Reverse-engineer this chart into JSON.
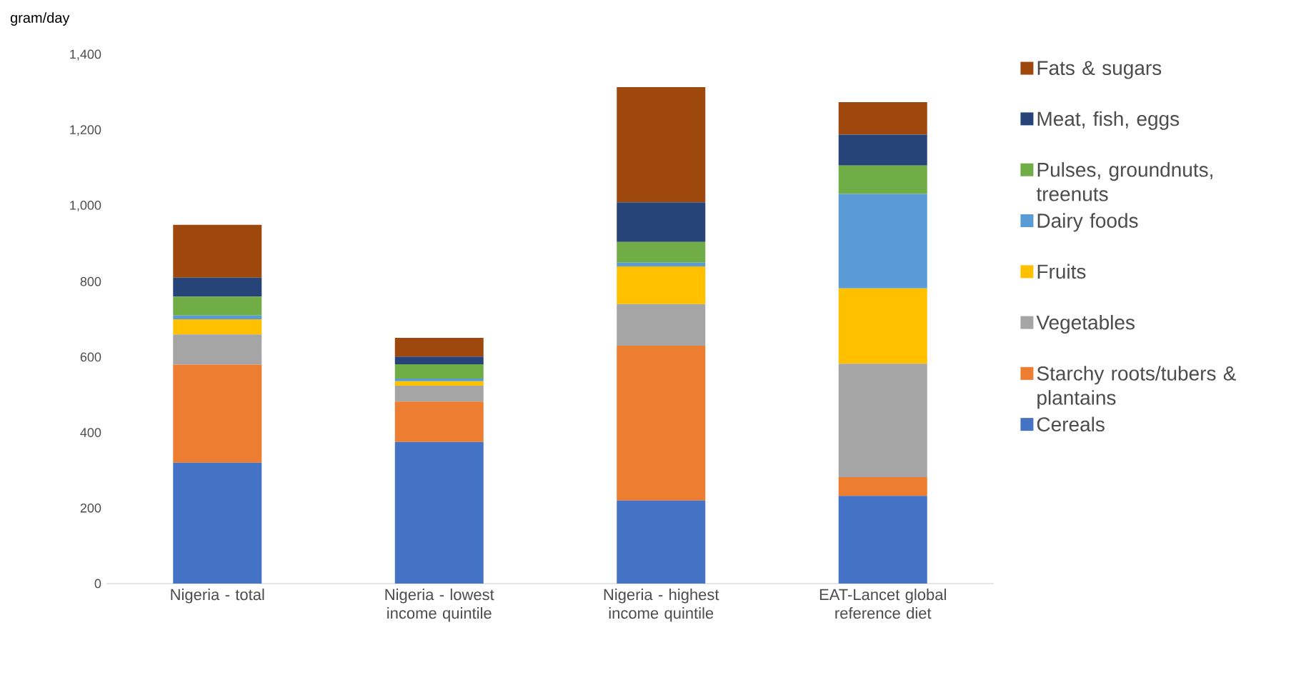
{
  "chart_data": {
    "type": "bar",
    "stacked": true,
    "ylabel": "gram/day",
    "categories": [
      "Nigeria - total",
      "Nigeria - lowest income quintile",
      "Nigeria - highest income quintile",
      "EAT-Lancet global reference diet"
    ],
    "series": [
      {
        "name": "Cereals",
        "color": "#4472c4",
        "values": [
          320,
          375,
          220,
          232
        ]
      },
      {
        "name": "Starchy roots/tubers & plantains",
        "color": "#ed7d31",
        "values": [
          260,
          107,
          410,
          50
        ]
      },
      {
        "name": "Vegetables",
        "color": "#a5a5a5",
        "values": [
          80,
          42,
          110,
          300
        ]
      },
      {
        "name": "Fruits",
        "color": "#ffc000",
        "values": [
          40,
          12,
          100,
          200
        ]
      },
      {
        "name": "Dairy foods",
        "color": "#5b9bd5",
        "values": [
          10,
          7,
          10,
          250
        ]
      },
      {
        "name": "Pulses, groundnuts, treenuts",
        "color": "#70ad47",
        "values": [
          50,
          38,
          55,
          75
        ]
      },
      {
        "name": "Meat, fish, eggs",
        "color": "#264478",
        "values": [
          50,
          20,
          105,
          82
        ]
      },
      {
        "name": "Fats & sugars",
        "color": "#9e480e",
        "values": [
          140,
          50,
          305,
          86
        ]
      }
    ],
    "ylim": [
      0,
      1400
    ],
    "yticks": [
      0,
      200,
      400,
      600,
      800,
      {
        "value": 1000,
        "label": "1,000"
      },
      {
        "value": 1200,
        "label": "1,200"
      },
      {
        "value": 1400,
        "label": "1,400"
      }
    ],
    "legend": "right"
  }
}
